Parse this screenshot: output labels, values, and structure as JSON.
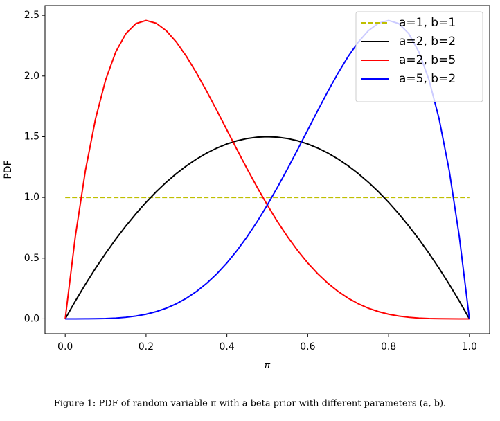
{
  "chart_data": {
    "type": "line",
    "xlabel": "π",
    "ylabel": "PDF",
    "caption": "Figure 1: PDF of random variable π with a beta prior with different parameters (a, b).",
    "x": [
      0,
      0.025,
      0.05,
      0.075,
      0.1,
      0.125,
      0.15,
      0.175,
      0.2,
      0.225,
      0.25,
      0.275,
      0.3,
      0.325,
      0.35,
      0.375,
      0.4,
      0.425,
      0.45,
      0.475,
      0.5,
      0.525,
      0.55,
      0.575,
      0.6,
      0.625,
      0.65,
      0.675,
      0.7,
      0.725,
      0.75,
      0.775,
      0.8,
      0.825,
      0.85,
      0.875,
      0.9,
      0.925,
      0.95,
      0.975,
      1
    ],
    "series": [
      {
        "name": "a=1, b=1",
        "color": "#bfbf00",
        "dashed": true,
        "values": [
          1,
          1,
          1,
          1,
          1,
          1,
          1,
          1,
          1,
          1,
          1,
          1,
          1,
          1,
          1,
          1,
          1,
          1,
          1,
          1,
          1,
          1,
          1,
          1,
          1,
          1,
          1,
          1,
          1,
          1,
          1,
          1,
          1,
          1,
          1,
          1,
          1,
          1,
          1,
          1,
          1
        ]
      },
      {
        "name": "a=2, b=2",
        "color": "#000000",
        "dashed": false,
        "values": [
          0,
          0.14625,
          0.285,
          0.41625,
          0.54,
          0.65625,
          0.765,
          0.86625,
          0.96,
          1.04625,
          1.125,
          1.19625,
          1.26,
          1.31625,
          1.365,
          1.40625,
          1.44,
          1.46625,
          1.485,
          1.49625,
          1.5,
          1.49625,
          1.485,
          1.46625,
          1.44,
          1.40625,
          1.365,
          1.31625,
          1.26,
          1.19625,
          1.125,
          1.04625,
          0.96,
          0.86625,
          0.765,
          0.65625,
          0.54,
          0.41625,
          0.285,
          0.14625,
          0
        ]
      },
      {
        "name": "a=2, b=5",
        "color": "#ff0000",
        "dashed": false,
        "values": [
          0,
          0.6778,
          1.2218,
          1.6472,
          1.9683,
          2.1982,
          2.349,
          2.4321,
          2.4576,
          2.4351,
          2.373,
          2.2793,
          2.1609,
          2.024,
          1.8743,
          1.7166,
          1.5552,
          1.3937,
          1.2353,
          1.0826,
          0.9375,
          0.8018,
          0.6766,
          0.5628,
          0.4608,
          0.3708,
          0.2926,
          0.2259,
          0.1701,
          0.1244,
          0.0879,
          0.0596,
          0.0384,
          0.0232,
          0.0129,
          0.0064,
          0.0027,
          0.0009,
          0.0002,
          0,
          0
        ]
      },
      {
        "name": "a=5, b=2",
        "color": "#0000ff",
        "dashed": false,
        "values": [
          0,
          0,
          0.0002,
          0.0009,
          0.0027,
          0.0064,
          0.0129,
          0.0232,
          0.0384,
          0.0596,
          0.0879,
          0.1244,
          0.1701,
          0.2259,
          0.2926,
          0.3708,
          0.4608,
          0.5628,
          0.6766,
          0.8018,
          0.9375,
          1.0826,
          1.2353,
          1.3937,
          1.5552,
          1.7166,
          1.8743,
          2.024,
          2.1609,
          2.2793,
          2.373,
          2.4351,
          2.4576,
          2.4321,
          2.349,
          2.1982,
          1.9683,
          1.6472,
          1.2218,
          0.6778,
          0
        ]
      }
    ],
    "xlim": [
      -0.05,
      1.05
    ],
    "ylim": [
      -0.1229,
      2.5805
    ],
    "xticks": [
      {
        "value": 0,
        "label": "0.0"
      },
      0.2,
      0.4,
      0.6,
      0.8,
      {
        "value": 1,
        "label": "1.0"
      }
    ],
    "yticks": [
      {
        "value": 0,
        "label": "0.0"
      },
      0.5,
      {
        "value": 1,
        "label": "1.0"
      },
      1.5,
      {
        "value": 2,
        "label": "2.0"
      },
      2.5
    ],
    "grid": false,
    "legend": "upper-right"
  }
}
